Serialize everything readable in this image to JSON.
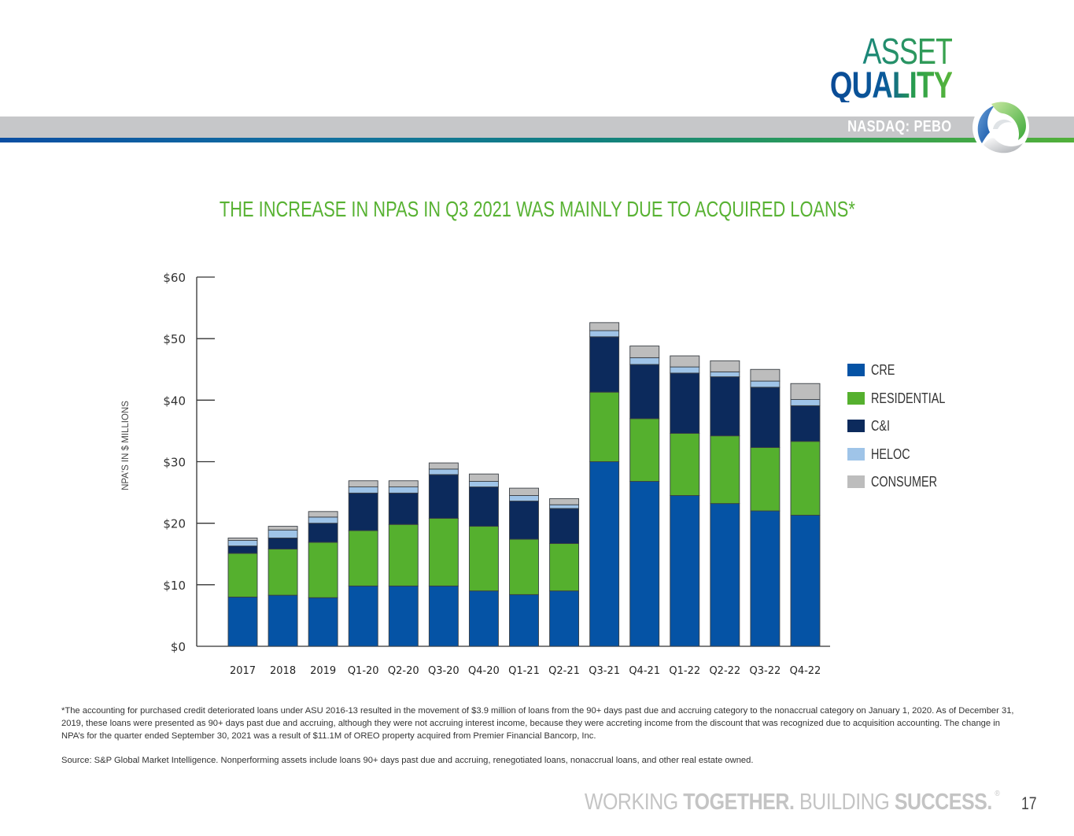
{
  "header": {
    "title_line1": "ASSET",
    "title_line2": "QUALITY",
    "ticker": "NASDAQ: PEBO",
    "logo_icon": "peoples-bancorp-swirl-logo-icon"
  },
  "colors": {
    "cre": "#0553a5",
    "residential": "#55b02e",
    "ci": "#0c2a5c",
    "heloc": "#9fc4e8",
    "consumer": "#bdbdbd",
    "title_green": "#58b233"
  },
  "chart_data": {
    "type": "bar",
    "stacked": true,
    "title": "THE INCREASE IN NPAS IN Q3 2021 WAS MAINLY DUE TO ACQUIRED LOANS*",
    "xlabel": "",
    "ylabel": "NPA'S IN $ MILLIONS",
    "ylim": [
      0,
      60
    ],
    "yticks": [
      0,
      10,
      20,
      30,
      40,
      50,
      60
    ],
    "ytick_labels": [
      "$0",
      "$10",
      "$20",
      "$30",
      "$40",
      "$50",
      "$60"
    ],
    "grid": false,
    "legend_position": "right",
    "categories": [
      "2017",
      "2018",
      "2019",
      "Q1-20",
      "Q2-20",
      "Q3-20",
      "Q4-20",
      "Q1-21",
      "Q2-21",
      "Q3-21",
      "Q4-21",
      "Q1-22",
      "Q2-22",
      "Q3-22",
      "Q4-22"
    ],
    "series": [
      {
        "name": "CRE",
        "key": "cre",
        "values": [
          8.0,
          8.3,
          7.9,
          9.8,
          9.8,
          9.8,
          9.0,
          8.4,
          9.0,
          30.0,
          26.8,
          24.5,
          23.2,
          22.0,
          21.3
        ]
      },
      {
        "name": "RESIDENTIAL",
        "key": "residential",
        "values": [
          7.1,
          7.5,
          9.0,
          9.0,
          10.0,
          11.0,
          10.5,
          9.0,
          7.7,
          11.3,
          10.2,
          10.1,
          11.0,
          10.3,
          12.0
        ]
      },
      {
        "name": "C&I",
        "key": "ci",
        "values": [
          1.2,
          1.8,
          3.1,
          6.1,
          5.1,
          7.1,
          6.4,
          6.2,
          5.7,
          9.0,
          8.8,
          9.8,
          9.6,
          9.8,
          5.8
        ]
      },
      {
        "name": "HELOC",
        "key": "heloc",
        "values": [
          0.9,
          1.3,
          1.0,
          1.0,
          1.0,
          0.9,
          0.9,
          0.9,
          0.6,
          1.0,
          1.1,
          1.0,
          0.8,
          1.0,
          1.0
        ]
      },
      {
        "name": "CONSUMER",
        "key": "consumer",
        "values": [
          0.4,
          0.6,
          0.9,
          1.0,
          1.0,
          1.0,
          1.2,
          1.2,
          1.0,
          1.3,
          1.9,
          1.8,
          1.8,
          1.9,
          2.6
        ]
      }
    ]
  },
  "footnote": {
    "text": "*The accounting for purchased credit deteriorated loans under ASU 2016-13 resulted in the movement of $3.9 million of loans from the 90+ days past due and accruing category to the nonaccrual category on January 1, 2020. As of December 31, 2019, these loans were presented as 90+ days past due and accruing, although they were not accruing interest income, because they were accreting income from the discount that was recognized due to acquisition accounting. The change in NPA’s for the quarter ended  September 30, 2021 was a result of $11.1M of OREO property acquired from Premier Financial Bancorp, Inc.",
    "source": "Source: S&P Global Market Intelligence. Nonperforming assets include loans 90+ days past due and accruing, renegotiated loans, nonaccrual loans, and other real estate owned."
  },
  "footer": {
    "tagline_part1": "WORKING ",
    "tagline_part2": "TOGETHER.",
    "tagline_part3": " BUILDING ",
    "tagline_part4": "SUCCESS.",
    "registered_mark": "®",
    "page_number": "17"
  }
}
